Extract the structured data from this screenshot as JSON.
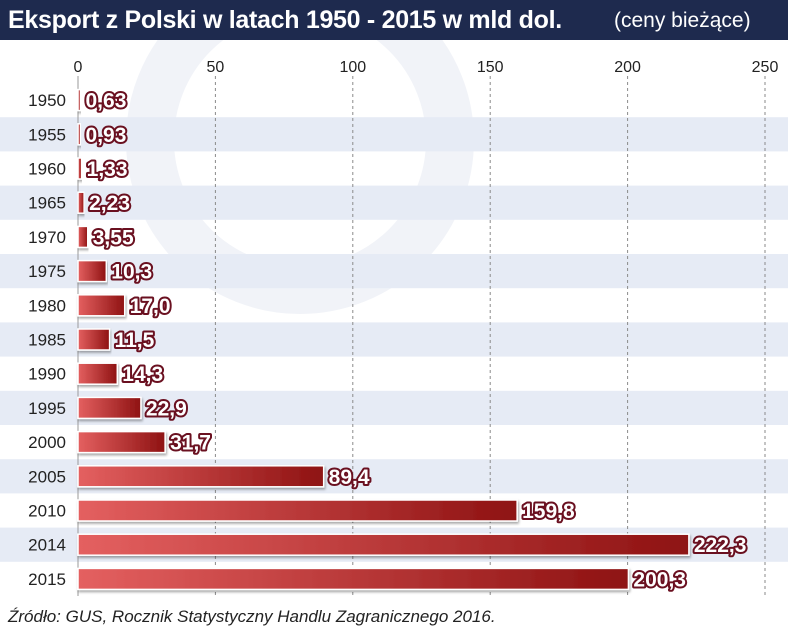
{
  "header": {
    "title": "Eksport z Polski w latach 1950 - 2015 w mld dol.",
    "subtitle": "(ceny bieżące)"
  },
  "source": "Źródło: GUS, Rocznik Statystyczny Handlu Zagranicznego 2016.",
  "colors": {
    "header_bg": "#1e2a4e",
    "stripe": "#e6ebf5",
    "bar_light": "#e46060",
    "bar_dark": "#8e1212",
    "label_fill": "#ffffff",
    "label_stroke": "#6a1020"
  },
  "chart_data": {
    "type": "bar",
    "orientation": "horizontal",
    "title": "Eksport z Polski w latach 1950 - 2015 w mld dol.",
    "subtitle": "(ceny bieżące)",
    "categories": [
      "1950",
      "1955",
      "1960",
      "1965",
      "1970",
      "1975",
      "1980",
      "1985",
      "1990",
      "1995",
      "2000",
      "2005",
      "2010",
      "2014",
      "2015"
    ],
    "values": [
      0.63,
      0.93,
      1.33,
      2.23,
      3.55,
      10.3,
      17.0,
      11.5,
      14.3,
      22.9,
      31.7,
      89.4,
      159.8,
      222.3,
      200.3
    ],
    "value_labels": [
      "0,63",
      "0,93",
      "1,33",
      "2,23",
      "3,55",
      "10,3",
      "17,0",
      "11,5",
      "14,3",
      "22,9",
      "31,7",
      "89,4",
      "159,8",
      "222,3",
      "200,3"
    ],
    "xlim": [
      0,
      250
    ],
    "xticks": [
      0,
      50,
      100,
      150,
      200,
      250
    ],
    "xtick_labels": [
      "0",
      "50",
      "100",
      "150",
      "200",
      "250"
    ],
    "xaxis_position": "top",
    "grid": true,
    "grid_style": "dashed-vertical"
  }
}
